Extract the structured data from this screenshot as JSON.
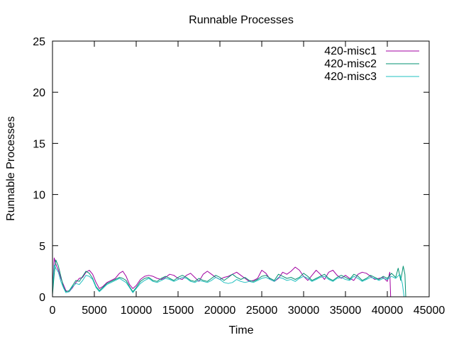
{
  "chart_data": {
    "type": "line",
    "title": "Runnable Processes",
    "xlabel": "Time",
    "ylabel": "Runnable Processes",
    "xlim": [
      0,
      45000
    ],
    "ylim": [
      0,
      25
    ],
    "xticks": [
      "0",
      "5000",
      "10000",
      "15000",
      "20000",
      "25000",
      "30000",
      "35000",
      "40000",
      "45000"
    ],
    "yticks": [
      "0",
      "5",
      "10",
      "15",
      "20",
      "25"
    ],
    "grid": false,
    "legend_position": "top-right",
    "series": [
      {
        "name": "420-misc1",
        "color": "#a000a0",
        "x": [
          0,
          200,
          400,
          700,
          1000,
          1300,
          1600,
          2000,
          2400,
          2800,
          3200,
          3600,
          4000,
          4400,
          4800,
          5200,
          5600,
          6000,
          6500,
          7000,
          7500,
          8000,
          8400,
          8800,
          9200,
          9600,
          10000,
          10500,
          11000,
          11500,
          12000,
          12500,
          13000,
          13500,
          14000,
          14500,
          15000,
          15500,
          16000,
          16500,
          17000,
          17500,
          18000,
          18500,
          19000,
          19500,
          20000,
          20500,
          21000,
          21500,
          22000,
          22500,
          23000,
          23500,
          24000,
          24500,
          25000,
          25500,
          26000,
          26500,
          27000,
          27500,
          28000,
          28500,
          29000,
          29500,
          30000,
          30500,
          31000,
          31500,
          32000,
          32500,
          33000,
          33500,
          34000,
          34500,
          35000,
          35500,
          36000,
          36500,
          37000,
          37500,
          38000,
          38500,
          39000,
          39500,
          40000,
          40200,
          40300,
          40400,
          40500
        ],
        "values": [
          0.4,
          3.8,
          3.2,
          2.6,
          1.8,
          1.2,
          0.6,
          0.5,
          0.9,
          1.4,
          1.8,
          1.9,
          2.4,
          2.6,
          2.2,
          1.4,
          0.8,
          1.0,
          1.4,
          1.6,
          1.8,
          2.3,
          2.5,
          2.0,
          1.2,
          0.8,
          1.1,
          1.7,
          2.0,
          2.1,
          2.0,
          1.8,
          1.7,
          1.9,
          2.2,
          2.1,
          1.8,
          1.7,
          2.1,
          2.3,
          1.9,
          1.5,
          2.2,
          2.5,
          2.2,
          1.9,
          1.7,
          1.9,
          2.0,
          2.2,
          2.4,
          2.1,
          1.8,
          1.5,
          1.6,
          1.8,
          2.6,
          2.3,
          1.7,
          1.5,
          1.8,
          2.4,
          2.2,
          2.5,
          2.9,
          2.6,
          2.0,
          1.6,
          2.1,
          2.6,
          2.2,
          1.7,
          2.4,
          2.6,
          2.1,
          1.8,
          2.1,
          1.8,
          1.6,
          2.2,
          2.4,
          2.3,
          2.0,
          1.7,
          1.8,
          1.9,
          1.5,
          2.1,
          2.4,
          0.0,
          0.0
        ]
      },
      {
        "name": "420-misc2",
        "color": "#009070",
        "x": [
          0,
          200,
          400,
          700,
          1000,
          1300,
          1600,
          2000,
          2400,
          2800,
          3200,
          3600,
          4000,
          4400,
          4800,
          5200,
          5600,
          6000,
          6500,
          7000,
          7500,
          8000,
          8400,
          8800,
          9200,
          9600,
          10000,
          10500,
          11000,
          11500,
          12000,
          12500,
          13000,
          13500,
          14000,
          14500,
          15000,
          15500,
          16000,
          16500,
          17000,
          17500,
          18000,
          18500,
          19000,
          19500,
          20000,
          20500,
          21000,
          21500,
          22000,
          22500,
          23000,
          23500,
          24000,
          24500,
          25000,
          25500,
          26000,
          26500,
          27000,
          27500,
          28000,
          28500,
          29000,
          29500,
          30000,
          30500,
          31000,
          31500,
          32000,
          32500,
          33000,
          33500,
          34000,
          34500,
          35000,
          35500,
          36000,
          36500,
          37000,
          37500,
          38000,
          38500,
          39000,
          39500,
          40000,
          40500,
          41000,
          41300,
          41600,
          41900,
          42100,
          42200
        ],
        "values": [
          0.2,
          2.2,
          3.6,
          3.0,
          2.0,
          1.0,
          0.5,
          0.6,
          1.1,
          1.6,
          1.5,
          2.0,
          2.5,
          2.3,
          1.8,
          1.0,
          0.6,
          0.9,
          1.3,
          1.5,
          1.7,
          1.9,
          1.8,
          1.6,
          1.0,
          0.5,
          0.9,
          1.5,
          1.8,
          1.9,
          1.6,
          1.5,
          1.8,
          2.0,
          1.8,
          1.6,
          1.9,
          2.1,
          1.9,
          1.6,
          1.5,
          1.8,
          1.6,
          1.5,
          1.8,
          2.1,
          1.9,
          1.6,
          1.9,
          2.2,
          1.9,
          1.7,
          1.9,
          1.6,
          1.5,
          1.7,
          2.0,
          2.1,
          1.8,
          1.6,
          2.2,
          2.0,
          1.8,
          1.9,
          1.7,
          1.9,
          2.3,
          2.0,
          1.6,
          1.8,
          2.0,
          2.2,
          1.8,
          1.6,
          1.9,
          2.1,
          1.9,
          1.7,
          2.2,
          2.0,
          1.6,
          1.8,
          2.1,
          1.9,
          1.7,
          2.0,
          1.8,
          2.3,
          1.9,
          2.8,
          1.6,
          3.0,
          2.2,
          0.0
        ]
      },
      {
        "name": "420-misc3",
        "color": "#20c0c0",
        "x": [
          0,
          200,
          400,
          700,
          1000,
          1300,
          1600,
          2000,
          2400,
          2800,
          3200,
          3600,
          4000,
          4400,
          4800,
          5200,
          5600,
          6000,
          6500,
          7000,
          7500,
          8000,
          8400,
          8800,
          9200,
          9600,
          10000,
          10500,
          11000,
          11500,
          12000,
          12500,
          13000,
          13500,
          14000,
          14500,
          15000,
          15500,
          16000,
          16500,
          17000,
          17500,
          18000,
          18500,
          19000,
          19500,
          20000,
          20500,
          21000,
          21500,
          22000,
          22500,
          23000,
          23500,
          24000,
          24500,
          25000,
          25500,
          26000,
          26500,
          27000,
          27500,
          28000,
          28500,
          29000,
          29500,
          30000,
          30500,
          31000,
          31500,
          32000,
          32500,
          33000,
          33500,
          34000,
          34500,
          35000,
          35500,
          36000,
          36500,
          37000,
          37500,
          38000,
          38500,
          39000,
          39500,
          40000,
          40500,
          41000,
          41500,
          41800,
          42000
        ],
        "values": [
          0.6,
          3.1,
          2.8,
          2.4,
          1.5,
          0.9,
          0.4,
          0.5,
          1.0,
          1.3,
          1.2,
          1.6,
          2.1,
          2.0,
          1.7,
          0.9,
          0.5,
          0.8,
          1.2,
          1.4,
          1.6,
          1.8,
          1.6,
          1.4,
          0.9,
          0.4,
          0.8,
          1.3,
          1.6,
          1.8,
          1.5,
          1.4,
          1.6,
          1.8,
          1.7,
          1.5,
          1.7,
          1.9,
          1.8,
          1.5,
          1.4,
          1.6,
          1.5,
          1.4,
          1.6,
          1.9,
          1.7,
          1.4,
          1.3,
          1.4,
          1.7,
          1.5,
          1.4,
          1.5,
          1.4,
          1.6,
          1.8,
          1.9,
          1.7,
          1.5,
          1.9,
          1.8,
          1.6,
          1.7,
          1.5,
          1.8,
          2.0,
          1.8,
          1.5,
          1.7,
          1.9,
          2.0,
          1.7,
          1.5,
          1.8,
          1.9,
          1.7,
          1.6,
          2.0,
          1.8,
          1.5,
          1.7,
          1.9,
          1.8,
          1.6,
          1.8,
          1.7,
          2.0,
          1.8,
          2.2,
          1.3,
          0.0
        ]
      }
    ]
  }
}
